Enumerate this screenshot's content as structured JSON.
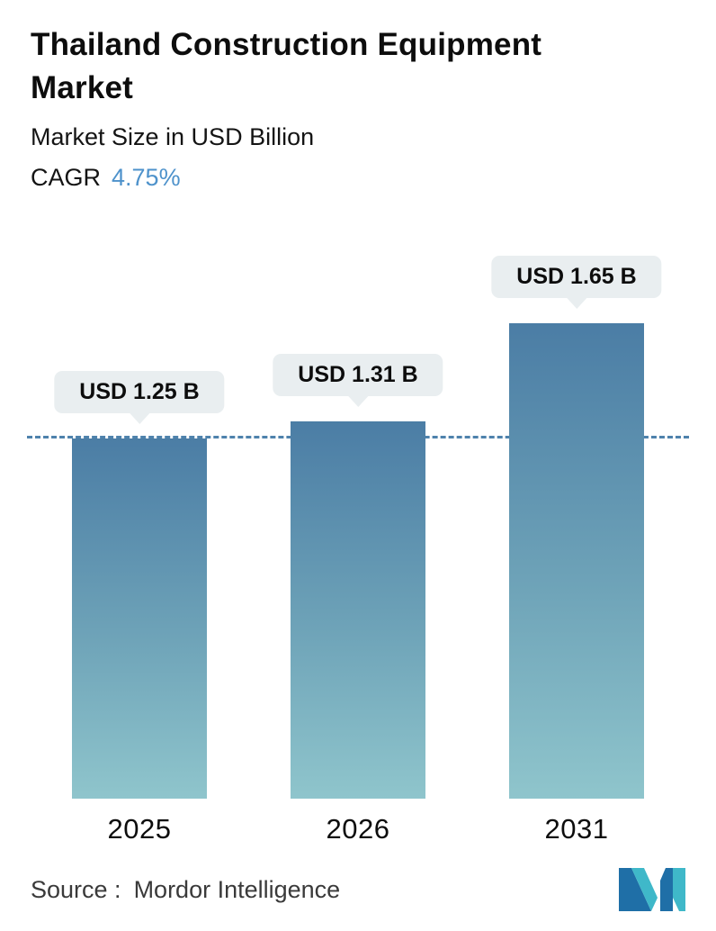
{
  "header": {
    "title": "Thailand Construction Equipment Market",
    "subtitle": "Market Size in USD Billion",
    "cagr_label": "CAGR",
    "cagr_value": "4.75%"
  },
  "chart_data": {
    "type": "bar",
    "title": "Thailand Construction Equipment Market",
    "ylabel": "Market Size in USD Billion",
    "categories": [
      "2025",
      "2026",
      "2031"
    ],
    "values": [
      1.25,
      1.31,
      1.65
    ],
    "data_labels": [
      "USD 1.25 B",
      "USD 1.31 B",
      "USD 1.65 B"
    ],
    "reference_line_value": 1.25,
    "ylim": [
      0,
      1.9
    ],
    "grid": false,
    "legend": false,
    "colors": {
      "bar_gradient_top": "#4b7da5",
      "bar_gradient_bottom": "#8fc5cc",
      "dashed_line": "#4e82ac",
      "label_pill_bg": "#e9eef0",
      "cagr_accent": "#4e92cb"
    }
  },
  "footer": {
    "source_label": "Source :",
    "source_value": "Mordor Intelligence",
    "logo_name": "mordor-intelligence-logo"
  }
}
